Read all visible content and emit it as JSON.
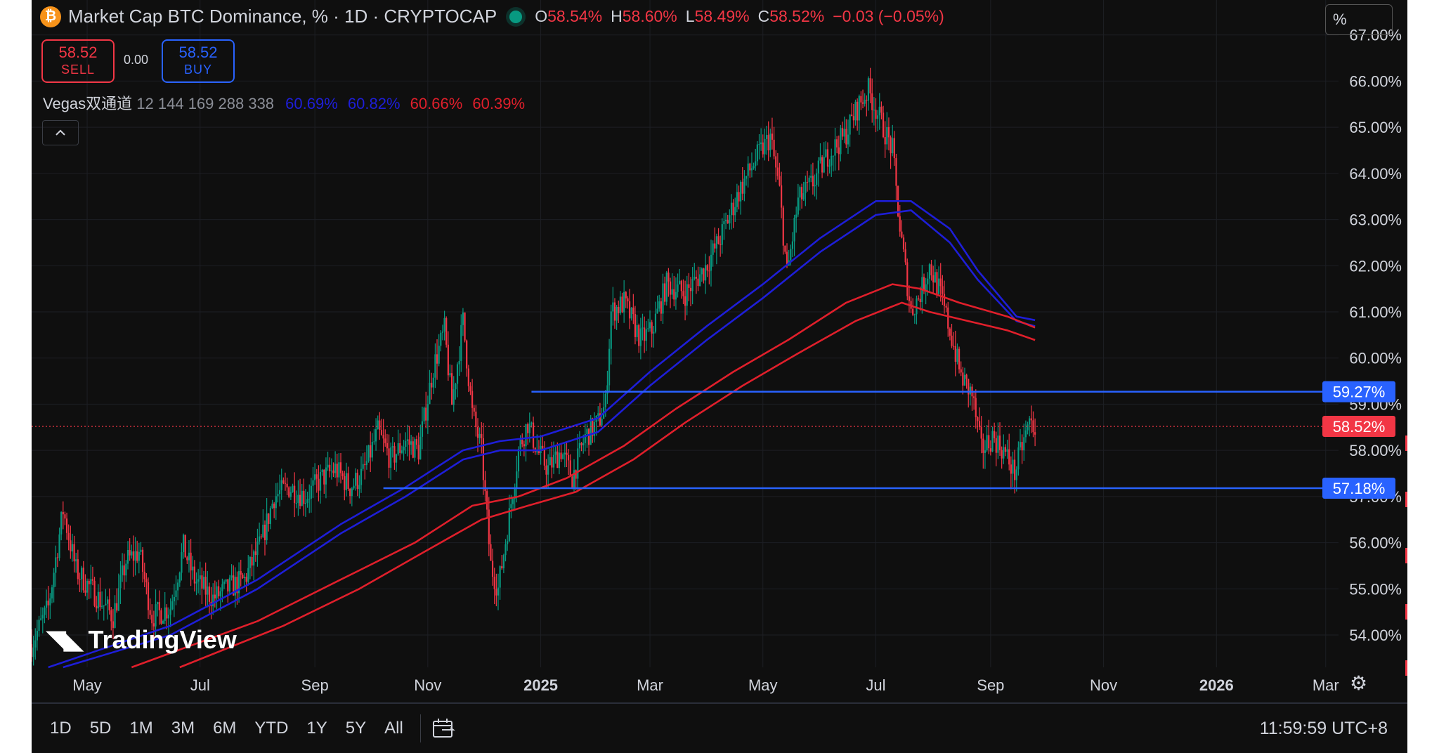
{
  "header": {
    "coin_glyph": "₿",
    "title": "Market Cap BTC Dominance, % · 1D · CRYPTOCAP",
    "open_label": "O",
    "open": "58.54%",
    "high_label": "H",
    "high": "58.60%",
    "low_label": "L",
    "low": "58.49%",
    "close_label": "C",
    "close": "58.52%",
    "change": "−0.03 (−0.05%)"
  },
  "trade": {
    "sell_price": "58.52",
    "sell_label": "SELL",
    "spread": "0.00",
    "buy_price": "58.52",
    "buy_label": "BUY"
  },
  "indicator": {
    "name": "Vegas双通道",
    "params": "12 144 169 288 338",
    "v1": "60.69%",
    "v2": "60.82%",
    "v3": "60.66%",
    "v4": "60.39%"
  },
  "scale_mode": "%",
  "watermark": "TradingView",
  "bottom_bar": {
    "ranges": [
      "1D",
      "5D",
      "1M",
      "3M",
      "6M",
      "YTD",
      "1Y",
      "5Y",
      "All"
    ],
    "clock": "11:59:59 UTC+8"
  },
  "colors": {
    "background": "#0f0f0f",
    "up": "#089981",
    "down": "#f23645",
    "ema_blue": "#1e1ed8",
    "ema_red": "#e01f2b",
    "hline": "#2962ff"
  },
  "chart_data": {
    "type": "candlestick",
    "y_axis": {
      "min": 53.3,
      "max": 67.3,
      "ticks": [
        54,
        55,
        56,
        57,
        58,
        59,
        60,
        61,
        62,
        63,
        64,
        65,
        66,
        67
      ],
      "tick_labels": [
        "54.00%",
        "55.00%",
        "56.00%",
        "57.00%",
        "58.00%",
        "59.00%",
        "60.00%",
        "61.00%",
        "62.00%",
        "63.00%",
        "64.00%",
        "65.00%",
        "66.00%",
        "67.00%"
      ]
    },
    "x_axis": {
      "start": "2024-04-01",
      "end": "2026-03-25",
      "ticks": [
        {
          "date": "2024-05-01",
          "label": "May",
          "bold": false
        },
        {
          "date": "2024-07-01",
          "label": "Jul",
          "bold": false
        },
        {
          "date": "2024-09-01",
          "label": "Sep",
          "bold": false
        },
        {
          "date": "2024-11-01",
          "label": "Nov",
          "bold": false
        },
        {
          "date": "2025-01-01",
          "label": "2025",
          "bold": true
        },
        {
          "date": "2025-03-01",
          "label": "Mar",
          "bold": false
        },
        {
          "date": "2025-05-01",
          "label": "May",
          "bold": false
        },
        {
          "date": "2025-07-01",
          "label": "Jul",
          "bold": false
        },
        {
          "date": "2025-09-01",
          "label": "Sep",
          "bold": false
        },
        {
          "date": "2025-11-01",
          "label": "Nov",
          "bold": false
        },
        {
          "date": "2026-01-01",
          "label": "2026",
          "bold": true
        },
        {
          "date": "2026-03-01",
          "label": "Mar",
          "bold": false
        }
      ]
    },
    "price_path": [
      [
        "2024-04-01",
        53.8
      ],
      [
        "2024-04-10",
        54.6
      ],
      [
        "2024-04-18",
        56.7
      ],
      [
        "2024-04-25",
        55.4
      ],
      [
        "2024-05-05",
        54.9
      ],
      [
        "2024-05-15",
        54.4
      ],
      [
        "2024-05-22",
        55.6
      ],
      [
        "2024-05-29",
        55.8
      ],
      [
        "2024-06-05",
        54.4
      ],
      [
        "2024-06-15",
        54.6
      ],
      [
        "2024-06-22",
        55.9
      ],
      [
        "2024-06-28",
        55.2
      ],
      [
        "2024-07-08",
        54.8
      ],
      [
        "2024-07-16",
        55.0
      ],
      [
        "2024-07-25",
        55.2
      ],
      [
        "2024-08-03",
        56.0
      ],
      [
        "2024-08-10",
        57.0
      ],
      [
        "2024-08-18",
        57.2
      ],
      [
        "2024-08-27",
        57.0
      ],
      [
        "2024-09-05",
        57.4
      ],
      [
        "2024-09-12",
        57.6
      ],
      [
        "2024-09-20",
        57.2
      ],
      [
        "2024-09-27",
        57.5
      ],
      [
        "2024-10-05",
        58.4
      ],
      [
        "2024-10-12",
        57.8
      ],
      [
        "2024-10-20",
        58.2
      ],
      [
        "2024-10-27",
        58.0
      ],
      [
        "2024-11-04",
        59.8
      ],
      [
        "2024-11-10",
        60.6
      ],
      [
        "2024-11-14",
        59.0
      ],
      [
        "2024-11-20",
        60.8
      ],
      [
        "2024-11-25",
        58.8
      ],
      [
        "2024-11-30",
        58.0
      ],
      [
        "2024-12-05",
        55.5
      ],
      [
        "2024-12-09",
        55.0
      ],
      [
        "2024-12-14",
        56.3
      ],
      [
        "2024-12-20",
        58.0
      ],
      [
        "2024-12-25",
        58.6
      ],
      [
        "2024-12-30",
        58.0
      ],
      [
        "2025-01-05",
        57.6
      ],
      [
        "2025-01-12",
        58.0
      ],
      [
        "2025-01-18",
        57.4
      ],
      [
        "2025-01-25",
        58.3
      ],
      [
        "2025-02-01",
        58.6
      ],
      [
        "2025-02-05",
        59.0
      ],
      [
        "2025-02-08",
        61.0
      ],
      [
        "2025-02-15",
        61.2
      ],
      [
        "2025-02-24",
        60.4
      ],
      [
        "2025-03-02",
        60.6
      ],
      [
        "2025-03-10",
        61.6
      ],
      [
        "2025-03-20",
        61.4
      ],
      [
        "2025-03-30",
        61.9
      ],
      [
        "2025-04-08",
        62.6
      ],
      [
        "2025-04-18",
        63.6
      ],
      [
        "2025-04-27",
        64.3
      ],
      [
        "2025-05-05",
        64.8
      ],
      [
        "2025-05-10",
        63.6
      ],
      [
        "2025-05-14",
        61.8
      ],
      [
        "2025-05-20",
        63.4
      ],
      [
        "2025-05-28",
        63.8
      ],
      [
        "2025-06-05",
        64.4
      ],
      [
        "2025-06-14",
        64.8
      ],
      [
        "2025-06-22",
        65.5
      ],
      [
        "2025-06-27",
        65.8
      ],
      [
        "2025-07-03",
        65.2
      ],
      [
        "2025-07-10",
        64.5
      ],
      [
        "2025-07-14",
        62.8
      ],
      [
        "2025-07-20",
        61.0
      ],
      [
        "2025-07-25",
        61.4
      ],
      [
        "2025-07-30",
        62.0
      ],
      [
        "2025-08-04",
        61.5
      ],
      [
        "2025-08-10",
        60.6
      ],
      [
        "2025-08-16",
        59.6
      ],
      [
        "2025-08-22",
        59.2
      ],
      [
        "2025-08-27",
        58.0
      ],
      [
        "2025-09-02",
        58.3
      ],
      [
        "2025-09-08",
        58.0
      ],
      [
        "2025-09-14",
        57.5
      ],
      [
        "2025-09-18",
        58.1
      ],
      [
        "2025-09-22",
        58.6
      ],
      [
        "2025-09-25",
        58.52
      ]
    ],
    "last_value": 58.52,
    "series": [
      {
        "values": [
          [
            "2024-04-18",
            53.3
          ],
          [
            "2024-06-15",
            54.0
          ],
          [
            "2024-08-01",
            55.0
          ],
          [
            "2024-09-15",
            56.2
          ],
          [
            "2024-10-20",
            57.0
          ],
          [
            "2024-11-20",
            57.8
          ],
          [
            "2024-12-10",
            58.0
          ],
          [
            "2025-01-01",
            58.0
          ],
          [
            "2025-02-01",
            58.4
          ],
          [
            "2025-03-01",
            59.4
          ],
          [
            "2025-04-01",
            60.4
          ],
          [
            "2025-05-01",
            61.3
          ],
          [
            "2025-06-01",
            62.3
          ],
          [
            "2025-07-01",
            63.1
          ],
          [
            "2025-07-20",
            63.2
          ],
          [
            "2025-08-10",
            62.5
          ],
          [
            "2025-08-25",
            61.7
          ],
          [
            "2025-09-15",
            60.8
          ],
          [
            "2025-09-25",
            60.69
          ]
        ]
      },
      {
        "values": [
          [
            "2024-04-10",
            53.3
          ],
          [
            "2024-06-15",
            54.2
          ],
          [
            "2024-08-01",
            55.2
          ],
          [
            "2024-09-15",
            56.4
          ],
          [
            "2024-10-20",
            57.2
          ],
          [
            "2024-11-20",
            58.0
          ],
          [
            "2024-12-10",
            58.2
          ],
          [
            "2025-01-01",
            58.3
          ],
          [
            "2025-02-01",
            58.7
          ],
          [
            "2025-03-01",
            59.7
          ],
          [
            "2025-04-01",
            60.7
          ],
          [
            "2025-05-01",
            61.6
          ],
          [
            "2025-06-01",
            62.6
          ],
          [
            "2025-07-01",
            63.4
          ],
          [
            "2025-07-20",
            63.4
          ],
          [
            "2025-08-10",
            62.8
          ],
          [
            "2025-08-25",
            61.9
          ],
          [
            "2025-09-15",
            60.9
          ],
          [
            "2025-09-25",
            60.82
          ]
        ]
      },
      {
        "values": [
          [
            "2024-05-25",
            53.3
          ],
          [
            "2024-08-01",
            54.3
          ],
          [
            "2024-09-15",
            55.2
          ],
          [
            "2024-10-25",
            56.0
          ],
          [
            "2024-11-25",
            56.8
          ],
          [
            "2024-12-20",
            57.0
          ],
          [
            "2025-01-15",
            57.4
          ],
          [
            "2025-02-15",
            58.1
          ],
          [
            "2025-03-15",
            58.9
          ],
          [
            "2025-04-15",
            59.7
          ],
          [
            "2025-05-15",
            60.4
          ],
          [
            "2025-06-15",
            61.2
          ],
          [
            "2025-07-10",
            61.6
          ],
          [
            "2025-07-25",
            61.5
          ],
          [
            "2025-08-15",
            61.2
          ],
          [
            "2025-09-10",
            60.9
          ],
          [
            "2025-09-25",
            60.66
          ]
        ]
      },
      {
        "values": [
          [
            "2024-06-20",
            53.3
          ],
          [
            "2024-08-15",
            54.2
          ],
          [
            "2024-09-25",
            55.0
          ],
          [
            "2024-10-30",
            55.8
          ],
          [
            "2024-11-30",
            56.5
          ],
          [
            "2024-12-25",
            56.8
          ],
          [
            "2025-01-20",
            57.1
          ],
          [
            "2025-02-20",
            57.8
          ],
          [
            "2025-03-20",
            58.6
          ],
          [
            "2025-04-20",
            59.4
          ],
          [
            "2025-05-20",
            60.1
          ],
          [
            "2025-06-20",
            60.8
          ],
          [
            "2025-07-15",
            61.2
          ],
          [
            "2025-07-30",
            61.0
          ],
          [
            "2025-08-20",
            60.8
          ],
          [
            "2025-09-10",
            60.6
          ],
          [
            "2025-09-25",
            60.39
          ]
        ]
      }
    ],
    "horizontal_lines": [
      {
        "value": 59.27,
        "label": "59.27%",
        "from": "2024-12-27"
      },
      {
        "value": 57.18,
        "label": "57.18%",
        "from": "2024-10-08"
      }
    ],
    "last_price_label": "58.52%",
    "grid": true
  }
}
